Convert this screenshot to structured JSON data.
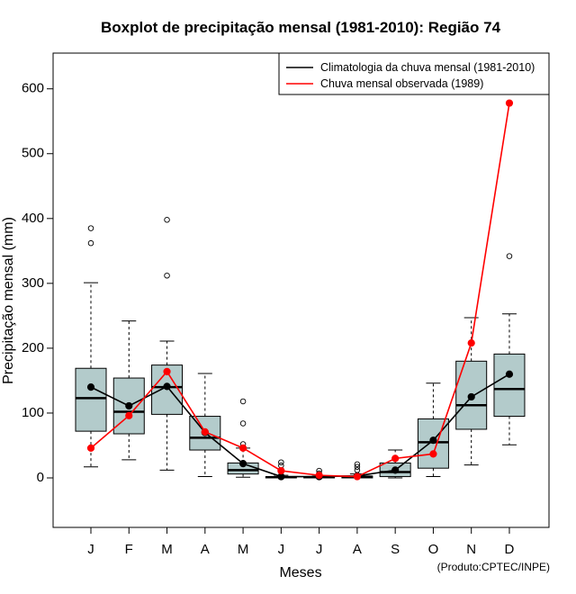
{
  "chart_data": {
    "type": "boxplot",
    "title": "Boxplot de precipitação mensal (1981-2010): Região 74",
    "xlabel": "Meses",
    "ylabel": "Precipitação mensal (mm)",
    "ylim": [
      -75,
      660
    ],
    "yticks": [
      0,
      100,
      200,
      300,
      400,
      500,
      600
    ],
    "categories": [
      "J",
      "F",
      "M",
      "A",
      "M",
      "J",
      "J",
      "A",
      "S",
      "O",
      "N",
      "D"
    ],
    "boxes": [
      {
        "min": 17,
        "q1": 72,
        "median": 123,
        "q3": 169,
        "max": 301,
        "outliers": [
          362,
          385
        ]
      },
      {
        "min": 28,
        "q1": 68,
        "median": 102,
        "q3": 154,
        "max": 242,
        "outliers": []
      },
      {
        "min": 12,
        "q1": 98,
        "median": 140,
        "q3": 174,
        "max": 211,
        "outliers": [
          312,
          398
        ]
      },
      {
        "min": 2,
        "q1": 43,
        "median": 62,
        "q3": 95,
        "max": 161,
        "outliers": []
      },
      {
        "min": 1,
        "q1": 6,
        "median": 12,
        "q3": 23,
        "max": 46,
        "outliers": [
          52,
          84,
          118
        ]
      },
      {
        "min": 0,
        "q1": 0,
        "median": 1,
        "q3": 2,
        "max": 4,
        "outliers": [
          10,
          19,
          24
        ]
      },
      {
        "min": 0,
        "q1": 0,
        "median": 1,
        "q3": 1,
        "max": 3,
        "outliers": [
          7,
          11
        ]
      },
      {
        "min": 0,
        "q1": 0,
        "median": 1,
        "q3": 3,
        "max": 6,
        "outliers": [
          12,
          17,
          21
        ]
      },
      {
        "min": 0,
        "q1": 2,
        "median": 9,
        "q3": 23,
        "max": 43,
        "outliers": []
      },
      {
        "min": 2,
        "q1": 15,
        "median": 55,
        "q3": 91,
        "max": 146,
        "outliers": []
      },
      {
        "min": 20,
        "q1": 75,
        "median": 112,
        "q3": 180,
        "max": 247,
        "outliers": []
      },
      {
        "min": 51,
        "q1": 95,
        "median": 137,
        "q3": 191,
        "max": 253,
        "outliers": [
          342
        ]
      }
    ],
    "series": [
      {
        "name": "Climatologia da chuva mensal (1981-2010)",
        "color": "#000000",
        "values": [
          140,
          111,
          141,
          70,
          22,
          2,
          2,
          3,
          12,
          58,
          125,
          160
        ]
      },
      {
        "name": "Chuva mensal observada (1989)",
        "color": "#ff0000",
        "values": [
          46,
          96,
          164,
          71,
          46,
          11,
          4,
          2,
          30,
          37,
          208,
          578
        ]
      }
    ],
    "legend_position": "top-right",
    "box_fill": "#b3cbcb",
    "credit": "(Produto:CPTEC/INPE)"
  }
}
